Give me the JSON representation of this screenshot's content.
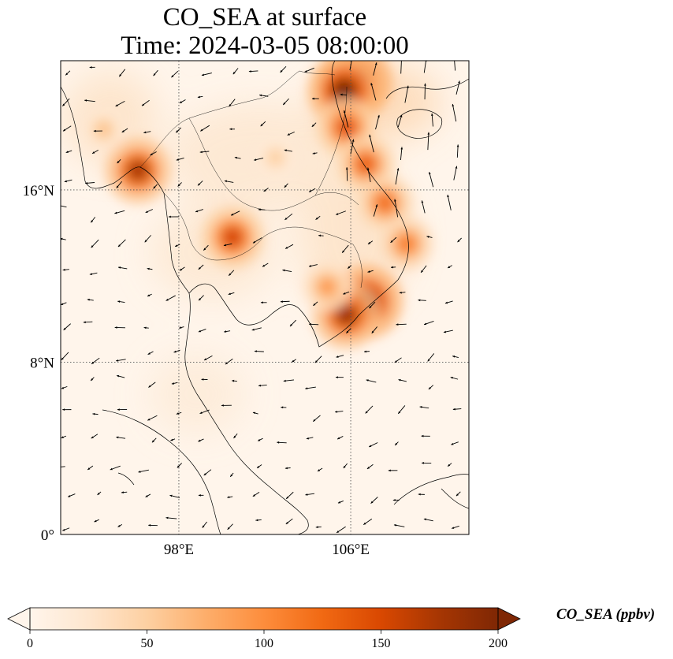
{
  "title": {
    "line1": "CO_SEA at surface",
    "line2": "Time: 2024-03-05 08:00:00"
  },
  "map": {
    "lon_range": [
      92.5,
      111.5
    ],
    "lat_range": [
      0,
      22
    ],
    "lat_ticks": [
      {
        "value": 16,
        "label": "16°N"
      },
      {
        "value": 8,
        "label": "8°N"
      },
      {
        "value": 0,
        "label": "0°"
      }
    ],
    "lon_ticks": [
      {
        "value": 98,
        "label": "98°E"
      },
      {
        "value": 106,
        "label": "106°E"
      }
    ],
    "gridlines": true,
    "hotspots_ppbv": [
      {
        "lon": 106.2,
        "lat": 21.0,
        "value": 210
      },
      {
        "lon": 105.7,
        "lat": 20.6,
        "value": 200
      },
      {
        "lon": 105.8,
        "lat": 18.9,
        "value": 140
      },
      {
        "lon": 106.7,
        "lat": 17.2,
        "value": 130
      },
      {
        "lon": 107.6,
        "lat": 15.4,
        "value": 120
      },
      {
        "lon": 108.6,
        "lat": 13.5,
        "value": 110
      },
      {
        "lon": 106.7,
        "lat": 10.8,
        "value": 205
      },
      {
        "lon": 105.8,
        "lat": 10.2,
        "value": 175
      },
      {
        "lon": 96.1,
        "lat": 16.9,
        "value": 170
      },
      {
        "lon": 100.5,
        "lat": 13.8,
        "value": 150
      },
      {
        "lon": 104.9,
        "lat": 11.5,
        "value": 90
      },
      {
        "lon": 94.5,
        "lat": 18.8,
        "value": 60
      },
      {
        "lon": 102.5,
        "lat": 17.5,
        "value": 50
      }
    ]
  },
  "colorbar": {
    "label": "CO_SEA (ppbv)",
    "min": 0,
    "max": 200,
    "ticks": [
      {
        "value": 0,
        "label": "0"
      },
      {
        "value": 50,
        "label": "50"
      },
      {
        "value": 100,
        "label": "100"
      },
      {
        "value": 150,
        "label": "150"
      },
      {
        "value": 200,
        "label": "200"
      }
    ],
    "extend": "both",
    "colormap": [
      "#fff5eb",
      "#fee6ce",
      "#fdd0a2",
      "#fdae6b",
      "#fd8d3c",
      "#f16913",
      "#d94801",
      "#a63603",
      "#7f2704"
    ]
  }
}
